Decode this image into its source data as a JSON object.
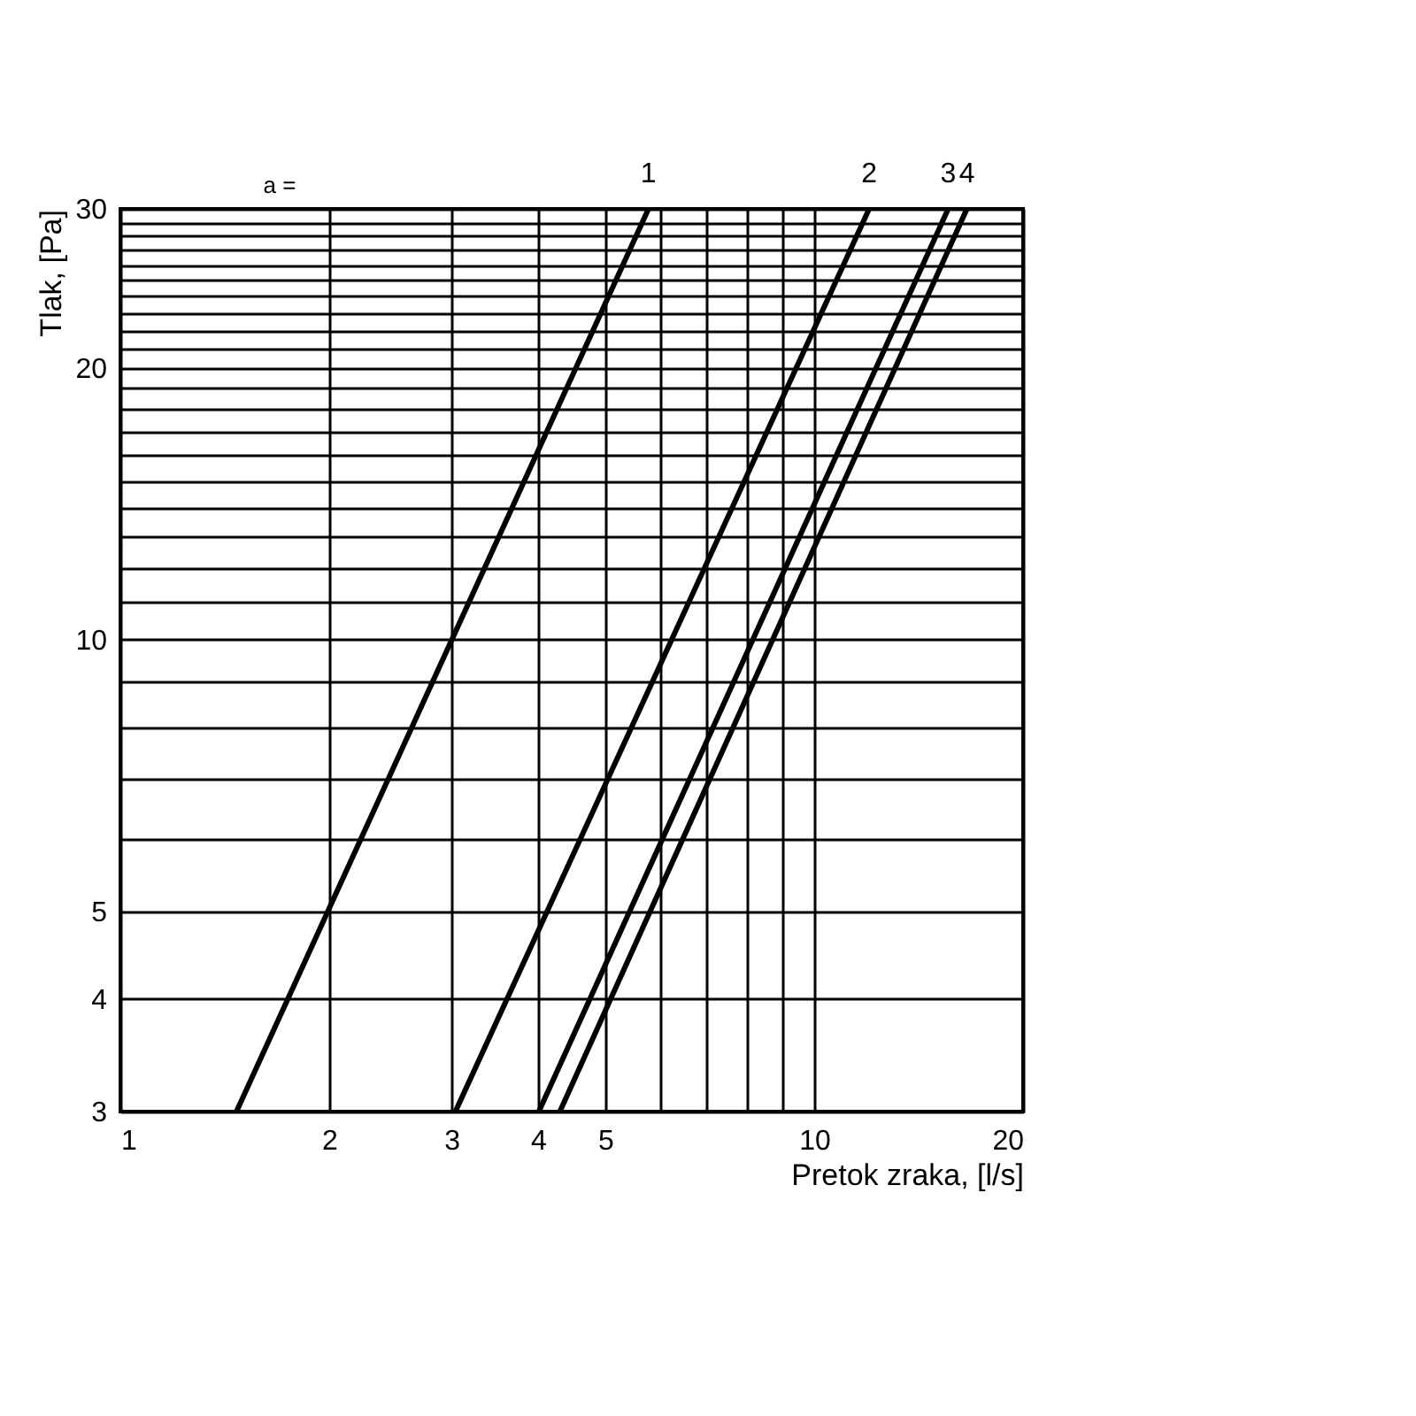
{
  "chart_data": {
    "type": "line",
    "xlabel": "Pretok zraka, [l/s]",
    "ylabel": "Tlak, [Pa]",
    "annotations": [
      "a ="
    ],
    "log": "xy",
    "grid": true,
    "legend": false,
    "line_style": "solid",
    "series": [
      {
        "name": "1",
        "color": "#000000",
        "x": [
          1.47,
          5.77
        ],
        "values": [
          3,
          30
        ]
      },
      {
        "name": "2",
        "color": "#000000",
        "x": [
          3.04,
          12.0
        ],
        "values": [
          3,
          30
        ]
      },
      {
        "name": "3",
        "color": "#000000",
        "x": [
          4.01,
          15.6
        ],
        "values": [
          3,
          30
        ]
      },
      {
        "name": "4",
        "color": "#000000",
        "x": [
          4.3,
          16.6
        ],
        "values": [
          3,
          30
        ]
      }
    ],
    "xlim": [
      1,
      20
    ],
    "ylim": [
      3,
      30
    ],
    "xticks": [
      1,
      2,
      3,
      4,
      5,
      {
        "value": 6,
        "label": null
      },
      {
        "value": 7,
        "label": null
      },
      {
        "value": 8,
        "label": null
      },
      {
        "value": 9,
        "label": null
      },
      10,
      20
    ],
    "yticks": [
      3,
      4,
      5,
      {
        "value": 6,
        "label": null
      },
      {
        "value": 7,
        "label": null
      },
      {
        "value": 8,
        "label": null
      },
      {
        "value": 9,
        "label": null
      },
      10,
      {
        "value": 11,
        "label": null
      },
      {
        "value": 12,
        "label": null
      },
      {
        "value": 13,
        "label": null
      },
      {
        "value": 14,
        "label": null
      },
      {
        "value": 15,
        "label": null
      },
      {
        "value": 16,
        "label": null
      },
      {
        "value": 17,
        "label": null
      },
      {
        "value": 18,
        "label": null
      },
      {
        "value": 19,
        "label": null
      },
      20,
      {
        "value": 21,
        "label": null
      },
      {
        "value": 22,
        "label": null
      },
      {
        "value": 23,
        "label": null
      },
      {
        "value": 24,
        "label": null
      },
      {
        "value": 25,
        "label": null
      },
      {
        "value": 26,
        "label": null
      },
      {
        "value": 27,
        "label": null
      },
      {
        "value": 28,
        "label": null
      },
      {
        "value": 29,
        "label": null
      },
      30
    ]
  }
}
